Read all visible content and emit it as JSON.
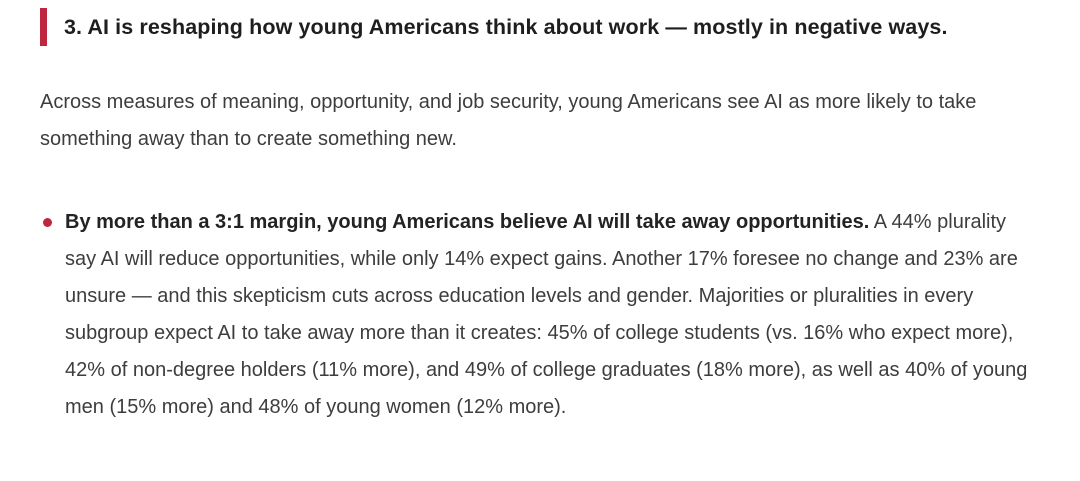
{
  "theme": {
    "accent_color": "#bf2640",
    "heading_text_color": "#1e1e1e",
    "body_text_color": "#3d3d3d",
    "background_color": "#ffffff"
  },
  "heading": {
    "text": "3. AI is reshaping how young Americans think about work — mostly in negative ways."
  },
  "intro_paragraph": {
    "text": "Across measures of meaning, opportunity, and job security, young Americans see AI as more likely to take something away than to create something new."
  },
  "bullets": [
    {
      "lead_bold": "By more than a 3:1 margin, young Americans believe AI will take away opportunities.",
      "body": "A 44% plurality say AI will reduce opportunities, while only 14% expect gains. Another 17% foresee no change and 23% are unsure — and this skepticism cuts across education levels and gender. Majorities or pluralities in every subgroup expect AI to take away more than it creates: 45% of college students (vs. 16% who expect more), 42% of non-degree holders (11% more), and 49% of college graduates (18% more), as well as 40% of young men (15% more) and 48% of young women (12% more).",
      "statistics": {
        "reduce_opportunities_pct": 44,
        "expect_gains_pct": 14,
        "no_change_pct": 17,
        "unsure_pct": 23,
        "college_students_take_away_pct": 45,
        "college_students_expect_more_pct": 16,
        "non_degree_take_away_pct": 42,
        "non_degree_expect_more_pct": 11,
        "college_grads_take_away_pct": 49,
        "college_grads_expect_more_pct": 18,
        "young_men_take_away_pct": 40,
        "young_men_expect_more_pct": 15,
        "young_women_take_away_pct": 48,
        "young_women_expect_more_pct": 12
      }
    }
  ]
}
